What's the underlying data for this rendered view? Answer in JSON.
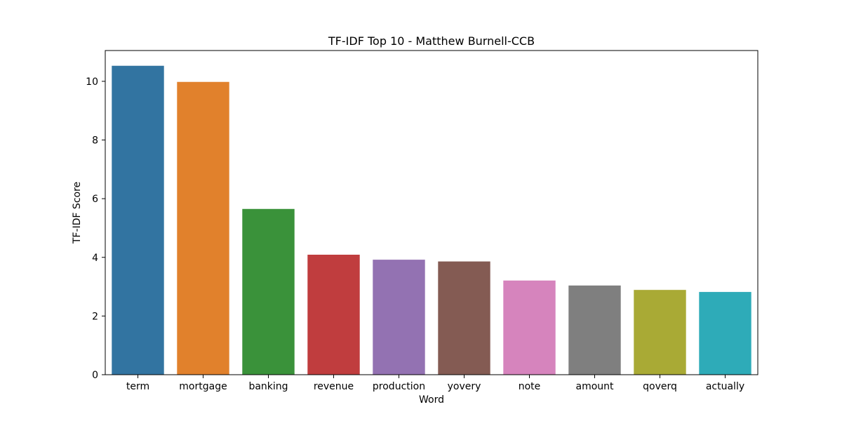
{
  "chart_data": {
    "type": "bar",
    "title": "TF-IDF Top 10 - Matthew Burnell-CCB",
    "xlabel": "Word",
    "ylabel": "TF-IDF Score",
    "categories": [
      "term",
      "mortgage",
      "banking",
      "revenue",
      "production",
      "yovery",
      "note",
      "amount",
      "qoverq",
      "actually"
    ],
    "values": [
      10.53,
      9.98,
      5.65,
      4.09,
      3.92,
      3.86,
      3.21,
      3.04,
      2.89,
      2.82
    ],
    "colors": [
      "#3274a1",
      "#e1812c",
      "#3a923a",
      "#c03d3e",
      "#9372b2",
      "#845b53",
      "#d684bd",
      "#7f7f7f",
      "#a9aa35",
      "#2eabb8"
    ],
    "ylim": [
      0,
      11.05
    ],
    "yticks": [
      0,
      2,
      4,
      6,
      8,
      10
    ],
    "grid": false,
    "legend": "none"
  }
}
